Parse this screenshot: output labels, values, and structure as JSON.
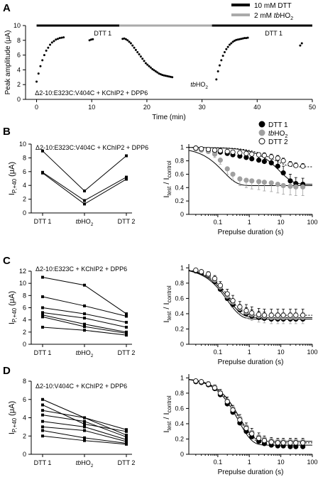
{
  "chart_data": [
    {
      "type": "scatter",
      "panel": "A",
      "xlabel": "Time (min)",
      "ylabel": "Peak amplitude (μA)",
      "annotation": "Δ2-10:E323C:V404C + KChIP2 + DPP6",
      "xlim": [
        -2,
        50
      ],
      "ylim": [
        0,
        10
      ],
      "xticks": [
        0,
        10,
        20,
        30,
        40,
        50
      ],
      "yticks": [
        0,
        2,
        4,
        6,
        8,
        10
      ],
      "legend": [
        "10 mM DTT",
        "2 mM tbHO2"
      ],
      "legend_colors": [
        "#000000",
        "#aaaaaa"
      ],
      "bar_segments": [
        {
          "label": "10 mM DTT",
          "from": 0,
          "to": 15,
          "color": "#000000"
        },
        {
          "label": "2 mM tbHO2",
          "from": 15,
          "to": 31.8,
          "color": "#aaaaaa"
        },
        {
          "label": "10 mM DTT",
          "from": 31.8,
          "to": 50,
          "color": "#000000"
        }
      ],
      "segment_labels": [
        {
          "text": "DTT 1",
          "x": 12
        },
        {
          "text": "tbHO2",
          "x": 29.5
        },
        {
          "text": "DTT 1",
          "x": 43
        }
      ],
      "points": {
        "x": [
          0,
          0.35,
          0.7,
          1.05,
          1.4,
          1.75,
          2.1,
          2.45,
          2.8,
          3.15,
          3.5,
          3.85,
          4.2,
          4.55,
          4.9,
          9.6,
          9.9,
          10.2,
          15.6,
          15.9,
          16.2,
          16.5,
          16.8,
          17.1,
          17.4,
          17.7,
          18.0,
          18.3,
          18.6,
          18.9,
          19.2,
          19.5,
          19.8,
          20.1,
          20.4,
          20.7,
          21.0,
          21.3,
          21.6,
          21.9,
          22.2,
          22.5,
          22.8,
          23.1,
          23.4,
          23.7,
          24.0,
          24.3,
          24.6,
          32.6,
          32.9,
          33.2,
          33.5,
          33.8,
          34.1,
          34.4,
          34.7,
          35.0,
          35.3,
          35.6,
          35.9,
          36.2,
          36.5,
          36.8,
          37.1,
          37.4,
          37.7,
          38.0,
          38.3,
          47.8,
          48.1
        ],
        "y": [
          2.4,
          3.5,
          4.5,
          5.3,
          6.0,
          6.6,
          7.0,
          7.4,
          7.7,
          7.9,
          8.1,
          8.2,
          8.3,
          8.35,
          8.4,
          8.0,
          8.1,
          8.15,
          8.2,
          8.25,
          8.15,
          8.0,
          7.8,
          7.6,
          7.3,
          7.0,
          6.7,
          6.4,
          6.1,
          5.8,
          5.5,
          5.2,
          4.9,
          4.7,
          4.5,
          4.3,
          4.1,
          3.95,
          3.8,
          3.65,
          3.5,
          3.4,
          3.3,
          3.25,
          3.2,
          3.15,
          3.1,
          3.05,
          3.0,
          2.7,
          3.8,
          4.6,
          5.3,
          5.9,
          6.4,
          6.8,
          7.1,
          7.4,
          7.6,
          7.8,
          7.95,
          8.05,
          8.1,
          8.15,
          8.2,
          8.25,
          8.3,
          8.3,
          8.35,
          7.3,
          7.6
        ]
      }
    },
    {
      "type": "line",
      "panel": "B",
      "ylabel_main": "I",
      "ylabel_sub": "P,+40",
      "ylabel_unit": "(μA)",
      "annotation": "Δ2-10:E323C:V404C + KChIP2 + DPP6",
      "categories": [
        "DTT 1",
        "tbHO2",
        "DTT 2"
      ],
      "ylim": [
        0,
        10
      ],
      "yticks": [
        0,
        2,
        4,
        6,
        8,
        10
      ],
      "series": [
        {
          "values": [
            9.0,
            3.2,
            8.3
          ]
        },
        {
          "values": [
            5.9,
            1.8,
            5.2
          ]
        },
        {
          "values": [
            5.8,
            1.3,
            4.9
          ]
        }
      ]
    },
    {
      "type": "line",
      "panel": "B-right",
      "xlabel": "Prepulse duration (s)",
      "ylabel_main": "I",
      "ylabel_sub1": "test",
      "ylabel_mid": " / I",
      "ylabel_sub2": "control",
      "xscale": "log",
      "xlim": [
        0.012,
        100
      ],
      "ylim": [
        0,
        1.05
      ],
      "xticks": [
        0.1,
        1,
        10,
        100
      ],
      "xtick_labels": [
        "0.1",
        "1",
        "10",
        "100"
      ],
      "yticks": [
        0,
        0.2,
        0.4,
        0.6,
        0.8,
        1
      ],
      "ytick_labels": [
        "0",
        "0.2",
        "0.4",
        "0.6",
        "0.8",
        "1"
      ],
      "legend": [
        "DTT 1",
        "tbHO2",
        "DTT 2"
      ],
      "legend_position": "top-right",
      "x": [
        0.02,
        0.03,
        0.05,
        0.08,
        0.12,
        0.2,
        0.3,
        0.5,
        0.8,
        1.2,
        2,
        3,
        5,
        8,
        12,
        20,
        30,
        50
      ],
      "series": [
        {
          "name": "DTT 1",
          "values": [
            0.99,
            0.97,
            0.96,
            0.95,
            0.93,
            0.91,
            0.89,
            0.87,
            0.85,
            0.83,
            0.81,
            0.79,
            0.77,
            0.72,
            0.62,
            0.5,
            0.46,
            0.45
          ],
          "errors": [
            0.02,
            0.02,
            0.02,
            0.03,
            0.03,
            0.04,
            0.04,
            0.05,
            0.05,
            0.06,
            0.06,
            0.07,
            0.07,
            0.08,
            0.1,
            0.1,
            0.09,
            0.09
          ],
          "fit_plateau": 0.45,
          "fit_tau": 9
        },
        {
          "name": "tbHO2",
          "values": [
            0.98,
            0.96,
            0.94,
            0.9,
            0.81,
            0.68,
            0.6,
            0.53,
            0.51,
            0.5,
            0.49,
            0.48,
            0.47,
            0.45,
            0.43,
            0.42,
            0.41,
            0.41
          ],
          "errors": [
            0.02,
            0.03,
            0.03,
            0.05,
            0.06,
            0.08,
            0.09,
            0.1,
            0.11,
            0.12,
            0.12,
            0.13,
            0.13,
            0.13,
            0.13,
            0.13,
            0.13,
            0.13
          ],
          "fit_plateau": 0.43,
          "fit_tau": 0.15
        },
        {
          "name": "DTT 2",
          "values": [
            0.99,
            0.98,
            0.97,
            0.96,
            0.95,
            0.94,
            0.93,
            0.92,
            0.91,
            0.9,
            0.89,
            0.88,
            0.86,
            0.84,
            0.8,
            0.75,
            0.73,
            0.72
          ],
          "errors": [
            0.01,
            0.01,
            0.01,
            0.02,
            0.02,
            0.02,
            0.02,
            0.03,
            0.03,
            0.03,
            0.03,
            0.04,
            0.04,
            0.04,
            0.04,
            0.04,
            0.04,
            0.04
          ],
          "fit_plateau": 0.71,
          "fit_tau": 6
        }
      ]
    },
    {
      "type": "line",
      "panel": "C",
      "ylabel_main": "I",
      "ylabel_sub": "P,+40",
      "ylabel_unit": "(μA)",
      "annotation": "Δ2-10:E323C + KChIP2 + DPP6",
      "categories": [
        "DTT 1",
        "tbHO2",
        "DTT 2"
      ],
      "ylim": [
        0,
        12
      ],
      "yticks": [
        0,
        2,
        4,
        6,
        8,
        10,
        12
      ],
      "series": [
        {
          "values": [
            11.0,
            9.7,
            5.0
          ]
        },
        {
          "values": [
            7.8,
            6.3,
            4.6
          ]
        },
        {
          "values": [
            6.0,
            5.0,
            3.6
          ]
        },
        {
          "values": [
            5.2,
            4.3,
            2.8
          ]
        },
        {
          "values": [
            4.8,
            3.3,
            2.0
          ]
        },
        {
          "values": [
            4.5,
            2.9,
            1.8
          ]
        },
        {
          "values": [
            2.8,
            2.3,
            1.5
          ]
        }
      ]
    },
    {
      "type": "line",
      "panel": "C-right",
      "xlabel": "Prepulse duration (s)",
      "ylabel_main": "I",
      "ylabel_sub1": "test",
      "ylabel_mid": " / I",
      "ylabel_sub2": "control",
      "xscale": "log",
      "xlim": [
        0.012,
        100
      ],
      "ylim": [
        0,
        1.05
      ],
      "xticks": [
        0.1,
        1,
        10,
        100
      ],
      "xtick_labels": [
        "0.1",
        "1",
        "10",
        "100"
      ],
      "yticks": [
        0,
        0.2,
        0.4,
        0.6,
        0.8,
        1
      ],
      "ytick_labels": [
        "0",
        "0.2",
        "0.4",
        "0.6",
        "0.8",
        "1"
      ],
      "x": [
        0.02,
        0.03,
        0.05,
        0.08,
        0.12,
        0.2,
        0.3,
        0.5,
        0.8,
        1.2,
        2,
        3,
        5,
        8,
        12,
        20,
        30,
        50
      ],
      "series": [
        {
          "name": "DTT 1",
          "values": [
            0.96,
            0.94,
            0.9,
            0.82,
            0.72,
            0.6,
            0.52,
            0.45,
            0.4,
            0.37,
            0.35,
            0.34,
            0.33,
            0.33,
            0.33,
            0.33,
            0.33,
            0.33
          ],
          "errors": [
            0.02,
            0.02,
            0.03,
            0.04,
            0.05,
            0.06,
            0.07,
            0.07,
            0.08,
            0.08,
            0.08,
            0.08,
            0.08,
            0.08,
            0.08,
            0.08,
            0.08,
            0.08
          ],
          "fit_plateau": 0.33,
          "fit_tau": 0.2
        },
        {
          "name": "tbHO2",
          "values": [
            0.97,
            0.95,
            0.91,
            0.84,
            0.75,
            0.63,
            0.55,
            0.47,
            0.42,
            0.39,
            0.37,
            0.36,
            0.35,
            0.35,
            0.35,
            0.35,
            0.35,
            0.35
          ],
          "errors": [
            0.02,
            0.02,
            0.03,
            0.04,
            0.05,
            0.06,
            0.07,
            0.07,
            0.08,
            0.08,
            0.08,
            0.08,
            0.08,
            0.08,
            0.08,
            0.08,
            0.08,
            0.08
          ],
          "fit_plateau": 0.35,
          "fit_tau": 0.22
        },
        {
          "name": "DTT 2",
          "values": [
            0.97,
            0.95,
            0.92,
            0.86,
            0.77,
            0.66,
            0.57,
            0.49,
            0.44,
            0.41,
            0.39,
            0.38,
            0.38,
            0.38,
            0.38,
            0.38,
            0.38,
            0.38
          ],
          "errors": [
            0.02,
            0.02,
            0.03,
            0.04,
            0.05,
            0.06,
            0.07,
            0.07,
            0.08,
            0.08,
            0.08,
            0.08,
            0.08,
            0.08,
            0.08,
            0.08,
            0.08,
            0.08
          ],
          "fit_plateau": 0.38,
          "fit_tau": 0.24
        }
      ]
    },
    {
      "type": "line",
      "panel": "D",
      "ylabel_main": "I",
      "ylabel_sub": "P,+40",
      "ylabel_unit": "(μA)",
      "annotation": "Δ2-10:V404C + KChIP2 + DPP6",
      "categories": [
        "DTT 1",
        "tbHO2",
        "DTT 2"
      ],
      "ylim": [
        0,
        8
      ],
      "yticks": [
        0,
        2,
        4,
        6,
        8
      ],
      "series": [
        {
          "values": [
            6.0,
            4.0,
            2.7
          ]
        },
        {
          "values": [
            5.4,
            3.3,
            2.5
          ]
        },
        {
          "values": [
            4.8,
            4.0,
            2.1
          ]
        },
        {
          "values": [
            4.3,
            3.6,
            1.9
          ]
        },
        {
          "values": [
            3.6,
            3.0,
            1.6
          ]
        },
        {
          "values": [
            3.0,
            2.6,
            1.4
          ]
        },
        {
          "values": [
            2.6,
            1.8,
            1.2
          ]
        },
        {
          "values": [
            2.0,
            1.5,
            1.1
          ]
        }
      ]
    },
    {
      "type": "line",
      "panel": "D-right",
      "xlabel": "Prepulse duration (s)",
      "ylabel_main": "I",
      "ylabel_sub1": "test",
      "ylabel_mid": " / I",
      "ylabel_sub2": "control",
      "xscale": "log",
      "xlim": [
        0.012,
        100
      ],
      "ylim": [
        0,
        1.05
      ],
      "xticks": [
        0.1,
        1,
        10,
        100
      ],
      "xtick_labels": [
        "0.1",
        "1",
        "10",
        "100"
      ],
      "yticks": [
        0,
        0.2,
        0.4,
        0.6,
        0.8,
        1
      ],
      "ytick_labels": [
        "0",
        "0.2",
        "0.4",
        "0.6",
        "0.8",
        "1"
      ],
      "x": [
        0.02,
        0.03,
        0.05,
        0.08,
        0.12,
        0.2,
        0.3,
        0.5,
        0.8,
        1.2,
        2,
        3,
        5,
        8,
        12,
        20,
        30,
        50
      ],
      "series": [
        {
          "name": "DTT 1",
          "values": [
            0.95,
            0.94,
            0.91,
            0.86,
            0.78,
            0.66,
            0.55,
            0.41,
            0.3,
            0.23,
            0.17,
            0.14,
            0.12,
            0.11,
            0.11,
            0.1,
            0.1,
            0.1
          ],
          "errors": [
            0.02,
            0.02,
            0.03,
            0.04,
            0.05,
            0.06,
            0.06,
            0.07,
            0.07,
            0.06,
            0.06,
            0.05,
            0.05,
            0.05,
            0.05,
            0.05,
            0.05,
            0.05
          ],
          "fit_plateau": 0.12,
          "fit_tau": 0.45
        },
        {
          "name": "tbHO2",
          "values": [
            0.96,
            0.95,
            0.92,
            0.88,
            0.81,
            0.7,
            0.6,
            0.47,
            0.36,
            0.29,
            0.23,
            0.2,
            0.18,
            0.17,
            0.17,
            0.17,
            0.17,
            0.17
          ],
          "errors": [
            0.02,
            0.02,
            0.03,
            0.04,
            0.05,
            0.06,
            0.06,
            0.07,
            0.07,
            0.07,
            0.07,
            0.06,
            0.06,
            0.06,
            0.06,
            0.06,
            0.06,
            0.06
          ],
          "fit_plateau": 0.17,
          "fit_tau": 0.5
        },
        {
          "name": "DTT 2",
          "values": [
            0.96,
            0.95,
            0.92,
            0.87,
            0.8,
            0.69,
            0.58,
            0.45,
            0.34,
            0.27,
            0.21,
            0.18,
            0.16,
            0.15,
            0.15,
            0.15,
            0.15,
            0.15
          ],
          "errors": [
            0.02,
            0.02,
            0.03,
            0.04,
            0.05,
            0.06,
            0.06,
            0.07,
            0.07,
            0.07,
            0.07,
            0.06,
            0.06,
            0.06,
            0.06,
            0.06,
            0.06,
            0.06
          ],
          "fit_plateau": 0.15,
          "fit_tau": 0.48
        }
      ]
    }
  ],
  "panel_labels": [
    "A",
    "B",
    "C",
    "D"
  ],
  "colors": {
    "black": "#000000",
    "grey": "#a0a0a0",
    "white": "#ffffff"
  }
}
